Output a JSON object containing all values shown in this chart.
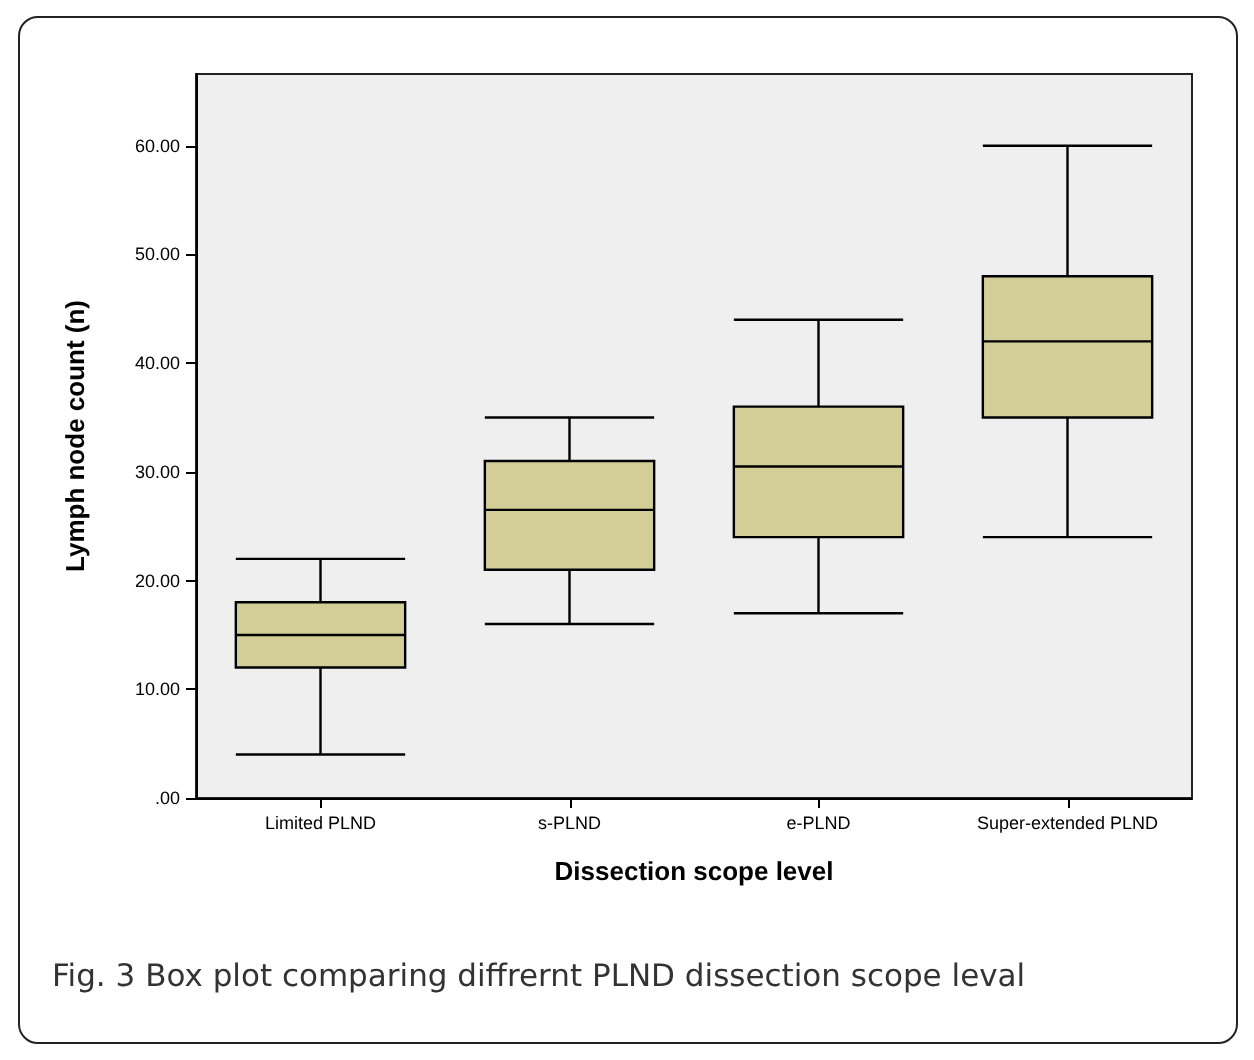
{
  "chart_data": {
    "type": "box",
    "xlabel": "Dissection scope level",
    "ylabel": "Lymph node count (n)",
    "categories": [
      "Limited PLND",
      "s-PLND",
      "e-PLND",
      "Super-extended PLND"
    ],
    "boxes": [
      {
        "low": 4,
        "q1": 12,
        "median": 15,
        "q3": 18,
        "high": 22
      },
      {
        "low": 16,
        "q1": 21,
        "median": 26.5,
        "q3": 31,
        "high": 35
      },
      {
        "low": 17,
        "q1": 24,
        "median": 30.5,
        "q3": 36,
        "high": 44
      },
      {
        "low": 24,
        "q1": 35,
        "median": 42,
        "q3": 48,
        "high": 60
      }
    ],
    "color": "#d3ce98",
    "ylim": [
      0,
      66.6
    ],
    "yticks": [
      {
        "value": 0,
        "label": ".00"
      },
      {
        "value": 10,
        "label": "10.00"
      },
      {
        "value": 20,
        "label": "20.00"
      },
      {
        "value": 30,
        "label": "30.00"
      },
      {
        "value": 40,
        "label": "40.00"
      },
      {
        "value": 50,
        "label": "50.00"
      },
      {
        "value": 60,
        "label": "60.00"
      }
    ],
    "grid": false,
    "annotations": [
      "Fig. 3 Box plot comparing diffrernt PLND dissection scope leval"
    ]
  }
}
